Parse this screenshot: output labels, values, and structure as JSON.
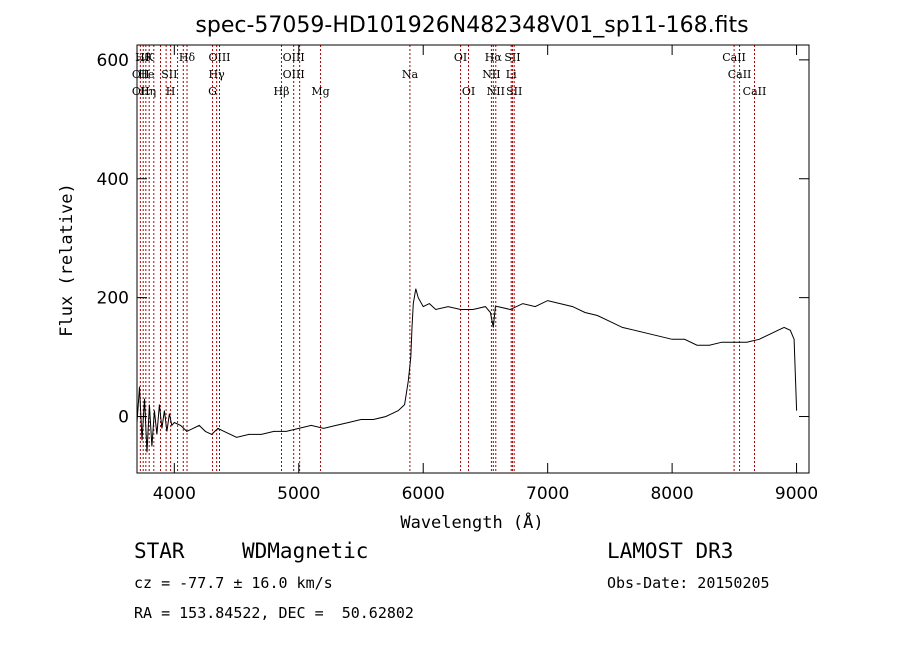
{
  "chart_data": {
    "type": "line",
    "title": "spec-57059-HD101926N482348V01_sp11-168.fits",
    "xlabel": "Wavelength (Å)",
    "ylabel": "Flux (relative)",
    "xlim": [
      3700,
      9100
    ],
    "ylim": [
      -95,
      625
    ],
    "x_ticks": [
      4000,
      5000,
      6000,
      7000,
      8000,
      9000
    ],
    "y_ticks": [
      0,
      200,
      400,
      600
    ],
    "grid": false,
    "legend": "none",
    "line_color": "#000000",
    "marker_color": "#aa0000",
    "spectrum": {
      "x": [
        3700,
        3720,
        3740,
        3760,
        3780,
        3800,
        3820,
        3840,
        3860,
        3880,
        3900,
        3920,
        3940,
        3960,
        3980,
        4000,
        4050,
        4100,
        4150,
        4200,
        4250,
        4300,
        4350,
        4400,
        4500,
        4600,
        4700,
        4800,
        4900,
        5000,
        5100,
        5200,
        5300,
        5400,
        5500,
        5600,
        5700,
        5750,
        5800,
        5850,
        5880,
        5900,
        5910,
        5920,
        5940,
        5960,
        6000,
        6050,
        6100,
        6200,
        6300,
        6400,
        6500,
        6540,
        6563,
        6580,
        6600,
        6700,
        6800,
        6900,
        7000,
        7100,
        7200,
        7300,
        7400,
        7500,
        7600,
        7700,
        7800,
        7900,
        8000,
        8100,
        8200,
        8300,
        8400,
        8500,
        8600,
        8700,
        8800,
        8850,
        8900,
        8950,
        8980,
        9000
      ],
      "y": [
        -10,
        50,
        -40,
        30,
        -60,
        20,
        -50,
        10,
        -30,
        20,
        -20,
        10,
        -25,
        5,
        -15,
        -10,
        -15,
        -25,
        -20,
        -15,
        -25,
        -30,
        -20,
        -25,
        -35,
        -30,
        -30,
        -25,
        -25,
        -20,
        -15,
        -20,
        -15,
        -10,
        -5,
        -5,
        0,
        5,
        10,
        20,
        60,
        100,
        150,
        190,
        215,
        200,
        185,
        190,
        180,
        185,
        180,
        180,
        185,
        175,
        150,
        185,
        185,
        180,
        190,
        185,
        195,
        190,
        185,
        175,
        170,
        160,
        150,
        145,
        140,
        135,
        130,
        130,
        120,
        120,
        125,
        125,
        125,
        130,
        140,
        145,
        150,
        145,
        130,
        10
      ]
    },
    "spectral_lines": {
      "wavelengths": [
        3727,
        3750,
        3771,
        3798,
        3835,
        3889,
        3934,
        3970,
        4026,
        4072,
        4102,
        4307,
        4340,
        4363,
        4861,
        4959,
        5007,
        5175,
        5893,
        6300,
        6364,
        6548,
        6563,
        6583,
        6707,
        6717,
        6731,
        8498,
        8542,
        8662
      ],
      "labels": [
        {
          "x": 3750,
          "text": "Hθ",
          "row": 1
        },
        {
          "x": 3800,
          "text": "K",
          "row": 1
        },
        {
          "x": 4102,
          "text": "Hδ",
          "row": 1
        },
        {
          "x": 4363,
          "text": "OIII",
          "row": 1
        },
        {
          "x": 4959,
          "text": "OIII",
          "row": 1
        },
        {
          "x": 6300,
          "text": "OI",
          "row": 1
        },
        {
          "x": 6563,
          "text": "Hα",
          "row": 1
        },
        {
          "x": 6717,
          "text": "SII",
          "row": 1
        },
        {
          "x": 8498,
          "text": "CaII",
          "row": 1
        },
        {
          "x": 3730,
          "text": "OII",
          "row": 2
        },
        {
          "x": 3775,
          "text": "He",
          "row": 2
        },
        {
          "x": 3960,
          "text": "SII",
          "row": 2
        },
        {
          "x": 4340,
          "text": "Hγ",
          "row": 2
        },
        {
          "x": 4959,
          "text": "OIII",
          "row": 2
        },
        {
          "x": 5893,
          "text": "Na",
          "row": 2
        },
        {
          "x": 6548,
          "text": "NII",
          "row": 2
        },
        {
          "x": 6707,
          "text": "Li",
          "row": 2
        },
        {
          "x": 8542,
          "text": "CaII",
          "row": 2
        },
        {
          "x": 3730,
          "text": "OII",
          "row": 3
        },
        {
          "x": 3789,
          "text": "Hη",
          "row": 3
        },
        {
          "x": 3970,
          "text": "H",
          "row": 3
        },
        {
          "x": 4307,
          "text": "G",
          "row": 3
        },
        {
          "x": 4861,
          "text": "Hβ",
          "row": 3
        },
        {
          "x": 5175,
          "text": "Mg",
          "row": 3
        },
        {
          "x": 6364,
          "text": "OI",
          "row": 3
        },
        {
          "x": 6583,
          "text": "NII",
          "row": 3
        },
        {
          "x": 6731,
          "text": "SII",
          "row": 3
        },
        {
          "x": 8662,
          "text": "CaII",
          "row": 3
        }
      ]
    }
  },
  "info": {
    "class": "STAR",
    "subclass": "WDMagnetic",
    "survey": "LAMOST DR3",
    "cz": "cz = -77.7 ± 16.0 km/s",
    "obs_date": "Obs-Date: 20150205",
    "radec": "RA = 153.84522, DEC =  50.62802"
  }
}
